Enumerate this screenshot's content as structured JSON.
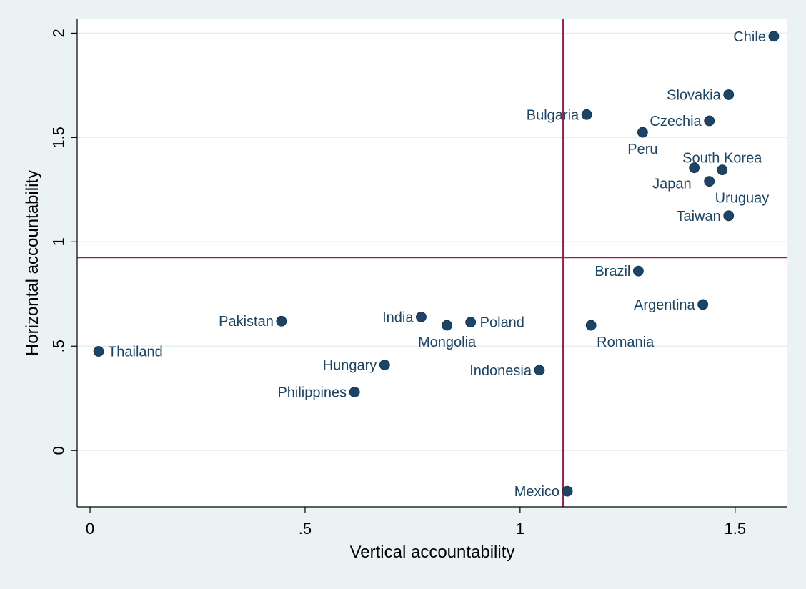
{
  "chart_data": {
    "type": "scatter",
    "title": "",
    "xlabel": "Vertical accountability",
    "ylabel": "Horizontal accountability",
    "xlim": [
      -0.03,
      1.62
    ],
    "ylim": [
      -0.27,
      2.07
    ],
    "xticks": [
      {
        "value": 0,
        "label": "0"
      },
      {
        "value": 0.5,
        "label": ".5"
      },
      {
        "value": 1,
        "label": "1"
      },
      {
        "value": 1.5,
        "label": "1.5"
      }
    ],
    "yticks": [
      {
        "value": 0,
        "label": "0"
      },
      {
        "value": 0.5,
        "label": ".5"
      },
      {
        "value": 1,
        "label": "1"
      },
      {
        "value": 1.5,
        "label": "1.5"
      },
      {
        "value": 2,
        "label": "2"
      }
    ],
    "grid": "horizontal",
    "reference_lines": {
      "x": 1.1,
      "y": 0.925,
      "color": "#a8194a"
    },
    "marker_color": "#1b4466",
    "label_color": "#1b4466",
    "points": [
      {
        "name": "Chile",
        "x": 1.59,
        "y": 1.985,
        "label_pos": "left"
      },
      {
        "name": "Slovakia",
        "x": 1.485,
        "y": 1.705,
        "label_pos": "left"
      },
      {
        "name": "Bulgaria",
        "x": 1.155,
        "y": 1.61,
        "label_pos": "left"
      },
      {
        "name": "Czechia",
        "x": 1.44,
        "y": 1.58,
        "label_pos": "left"
      },
      {
        "name": "Peru",
        "x": 1.285,
        "y": 1.525,
        "label_pos": "below"
      },
      {
        "name": "South Korea",
        "x": 1.47,
        "y": 1.345,
        "label_pos": "above"
      },
      {
        "name": "Japan",
        "x": 1.405,
        "y": 1.355,
        "label_pos": "below-left"
      },
      {
        "name": "Uruguay",
        "x": 1.44,
        "y": 1.29,
        "label_pos": "below-right"
      },
      {
        "name": "Taiwan",
        "x": 1.485,
        "y": 1.125,
        "label_pos": "left"
      },
      {
        "name": "Brazil",
        "x": 1.275,
        "y": 0.86,
        "label_pos": "left"
      },
      {
        "name": "Argentina",
        "x": 1.425,
        "y": 0.7,
        "label_pos": "left"
      },
      {
        "name": "Romania",
        "x": 1.165,
        "y": 0.6,
        "label_pos": "below-right"
      },
      {
        "name": "Poland",
        "x": 0.885,
        "y": 0.615,
        "label_pos": "right"
      },
      {
        "name": "Mongolia",
        "x": 0.83,
        "y": 0.6,
        "label_pos": "below"
      },
      {
        "name": "India",
        "x": 0.77,
        "y": 0.64,
        "label_pos": "left"
      },
      {
        "name": "Pakistan",
        "x": 0.445,
        "y": 0.62,
        "label_pos": "left"
      },
      {
        "name": "Thailand",
        "x": 0.02,
        "y": 0.475,
        "label_pos": "right"
      },
      {
        "name": "Hungary",
        "x": 0.685,
        "y": 0.41,
        "label_pos": "left"
      },
      {
        "name": "Philippines",
        "x": 0.615,
        "y": 0.28,
        "label_pos": "left"
      },
      {
        "name": "Indonesia",
        "x": 1.045,
        "y": 0.385,
        "label_pos": "left"
      },
      {
        "name": "Mexico",
        "x": 1.11,
        "y": -0.195,
        "label_pos": "left"
      }
    ]
  }
}
